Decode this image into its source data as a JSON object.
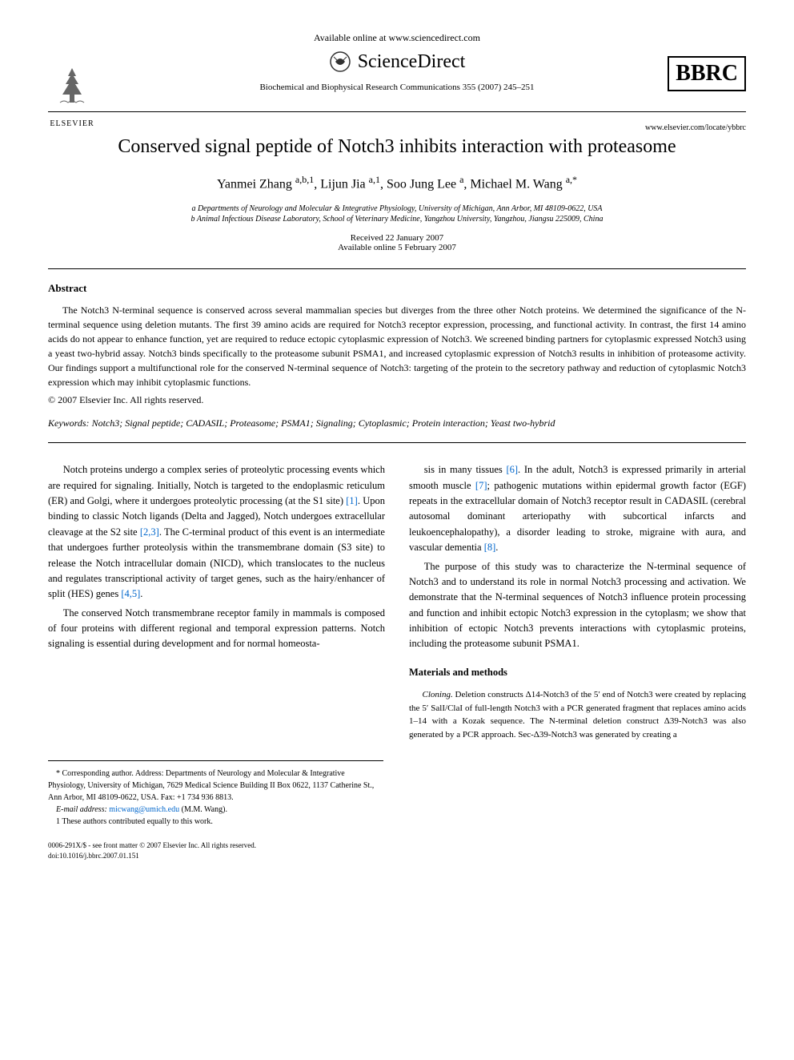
{
  "header": {
    "available_online": "Available online at www.sciencedirect.com",
    "sciencedirect": "ScienceDirect",
    "journal_citation": "Biochemical and Biophysical Research Communications 355 (2007) 245–251",
    "elsevier_label": "ELSEVIER",
    "bbrc_label": "BBRC",
    "journal_url": "www.elsevier.com/locate/ybbrc"
  },
  "article": {
    "title": "Conserved signal peptide of Notch3 inhibits interaction with proteasome",
    "authors_html": "Yanmei Zhang <sup>a,b,1</sup>, Lijun Jia <sup>a,1</sup>, Soo Jung Lee <sup>a</sup>, Michael M. Wang <sup>a,*</sup>",
    "affiliation_a": "a Departments of Neurology and Molecular & Integrative Physiology, University of Michigan, Ann Arbor, MI 48109-0622, USA",
    "affiliation_b": "b Animal Infectious Disease Laboratory, School of Veterinary Medicine, Yangzhou University, Yangzhou, Jiangsu 225009, China",
    "received": "Received 22 January 2007",
    "available_date": "Available online 5 February 2007"
  },
  "abstract": {
    "heading": "Abstract",
    "text": "The Notch3 N-terminal sequence is conserved across several mammalian species but diverges from the three other Notch proteins. We determined the significance of the N-terminal sequence using deletion mutants. The first 39 amino acids are required for Notch3 receptor expression, processing, and functional activity. In contrast, the first 14 amino acids do not appear to enhance function, yet are required to reduce ectopic cytoplasmic expression of Notch3. We screened binding partners for cytoplasmic expressed Notch3 using a yeast two-hybrid assay. Notch3 binds specifically to the proteasome subunit PSMA1, and increased cytoplasmic expression of Notch3 results in inhibition of proteasome activity. Our findings support a multifunctional role for the conserved N-terminal sequence of Notch3: targeting of the protein to the secretory pathway and reduction of cytoplasmic Notch3 expression which may inhibit cytoplasmic functions.",
    "copyright": "© 2007 Elsevier Inc. All rights reserved.",
    "keywords_label": "Keywords:",
    "keywords": "Notch3; Signal peptide; CADASIL; Proteasome; PSMA1; Signaling; Cytoplasmic; Protein interaction; Yeast two-hybrid"
  },
  "body": {
    "col1": {
      "p1": "Notch proteins undergo a complex series of proteolytic processing events which are required for signaling. Initially, Notch is targeted to the endoplasmic reticulum (ER) and Golgi, where it undergoes proteolytic processing (at the S1 site) [1]. Upon binding to classic Notch ligands (Delta and Jagged), Notch undergoes extracellular cleavage at the S2 site [2,3]. The C-terminal product of this event is an intermediate that undergoes further proteolysis within the transmembrane domain (S3 site) to release the Notch intracellular domain (NICD), which translocates to the nucleus and regulates transcriptional activity of target genes, such as the hairy/enhancer of split (HES) genes [4,5].",
      "p2": "The conserved Notch transmembrane receptor family in mammals is composed of four proteins with different regional and temporal expression patterns. Notch signaling is essential during development and for normal homeosta-"
    },
    "col2": {
      "p1": "sis in many tissues [6]. In the adult, Notch3 is expressed primarily in arterial smooth muscle [7]; pathogenic mutations within epidermal growth factor (EGF) repeats in the extracellular domain of Notch3 receptor result in CADASIL (cerebral autosomal dominant arteriopathy with subcortical infarcts and leukoencephalopathy), a disorder leading to stroke, migraine with aura, and vascular dementia [8].",
      "p2": "The purpose of this study was to characterize the N-terminal sequence of Notch3 and to understand its role in normal Notch3 processing and activation. We demonstrate that the N-terminal sequences of Notch3 influence protein processing and function and inhibit ectopic Notch3 expression in the cytoplasm; we show that inhibition of ectopic Notch3 prevents interactions with cytoplasmic proteins, including the proteasome subunit PSMA1."
    },
    "methods": {
      "heading": "Materials and methods",
      "cloning_label": "Cloning.",
      "cloning_text": "Deletion constructs Δ14-Notch3 of the 5′ end of Notch3 were created by replacing the 5′ SalI/ClaI of full-length Notch3 with a PCR generated fragment that replaces amino acids 1–14 with a Kozak sequence. The N-terminal deletion construct Δ39-Notch3 was also generated by a PCR approach. Sec-Δ39-Notch3 was generated by creating a"
    }
  },
  "footnotes": {
    "corresponding": "* Corresponding author. Address: Departments of Neurology and Molecular & Integrative Physiology, University of Michigan, 7629 Medical Science Building II Box 0622, 1137 Catherine St., Ann Arbor, MI 48109-0622, USA. Fax: +1 734 936 8813.",
    "email_label": "E-mail address:",
    "email": "micwang@umich.edu",
    "email_suffix": "(M.M. Wang).",
    "equal": "1 These authors contributed equally to this work."
  },
  "footer": {
    "line1": "0006-291X/$ - see front matter © 2007 Elsevier Inc. All rights reserved.",
    "line2": "doi:10.1016/j.bbrc.2007.01.151"
  },
  "refs": {
    "r1": "[1]",
    "r23": "[2,3]",
    "r45": "[4,5]",
    "r6": "[6]",
    "r7": "[7]",
    "r8": "[8]"
  },
  "colors": {
    "link": "#0066cc",
    "text": "#000000",
    "background": "#ffffff"
  }
}
